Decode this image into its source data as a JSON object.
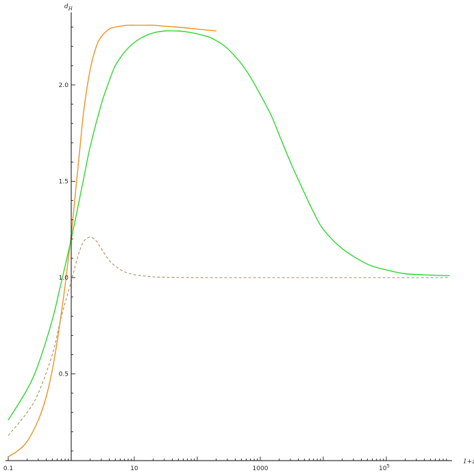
{
  "chart_data": {
    "type": "line",
    "title": "",
    "xlabel": "1+z",
    "ylabel_main": "d",
    "ylabel_sub": "H",
    "x_scale": "log10",
    "xlim": [
      0.1,
      1000000
    ],
    "ylim": [
      0.05,
      2.32
    ],
    "x_axis_crossing_y": 0.05,
    "y_axis_crossing_x": 1,
    "x_ticks": [
      {
        "value": 0.1,
        "label": "0.1"
      },
      {
        "value": 10,
        "label": "10"
      },
      {
        "value": 1000,
        "label": "1000"
      },
      {
        "value": 100000,
        "label": "10",
        "exp": "5"
      }
    ],
    "y_ticks": [
      {
        "value": 0.5,
        "label": "0.5"
      },
      {
        "value": 1.0,
        "label": "1.0"
      },
      {
        "value": 1.5,
        "label": "1.5"
      },
      {
        "value": 2.0,
        "label": "2.0"
      }
    ],
    "grid": false,
    "legend": "none",
    "series": [
      {
        "color": "#f0901e",
        "dashed": false,
        "x": [
          0.1,
          0.14,
          0.2,
          0.3,
          0.4,
          0.5,
          0.6,
          0.7,
          0.8,
          0.9,
          1.0,
          1.2,
          1.4,
          1.6,
          2,
          2.5,
          3,
          4,
          5,
          6,
          8,
          10,
          15,
          20,
          30,
          50,
          100,
          200
        ],
        "y": [
          0.07,
          0.1,
          0.15,
          0.26,
          0.38,
          0.52,
          0.67,
          0.82,
          0.96,
          1.1,
          1.22,
          1.48,
          1.7,
          1.88,
          2.08,
          2.2,
          2.25,
          2.29,
          2.3,
          2.305,
          2.31,
          2.31,
          2.31,
          2.31,
          2.305,
          2.3,
          2.29,
          2.28
        ]
      },
      {
        "color": "#2ed62e",
        "dashed": false,
        "x": [
          0.1,
          0.2,
          0.3,
          0.5,
          0.7,
          1.0,
          1.5,
          2,
          3,
          4,
          5,
          7,
          10,
          15,
          20,
          30,
          50,
          70,
          100,
          150,
          200,
          300,
          500,
          700,
          1000,
          1500,
          2000,
          3000,
          5000,
          7000,
          10000,
          20000,
          50000,
          100000,
          200000,
          500000,
          1000000
        ],
        "y": [
          0.26,
          0.42,
          0.55,
          0.78,
          0.98,
          1.2,
          1.48,
          1.68,
          1.9,
          2.02,
          2.1,
          2.17,
          2.22,
          2.255,
          2.27,
          2.28,
          2.28,
          2.275,
          2.265,
          2.25,
          2.23,
          2.19,
          2.11,
          2.04,
          1.95,
          1.84,
          1.74,
          1.6,
          1.44,
          1.34,
          1.25,
          1.15,
          1.07,
          1.04,
          1.02,
          1.013,
          1.01
        ]
      },
      {
        "color": "#b08a58",
        "dashed": true,
        "x": [
          0.1,
          0.2,
          0.3,
          0.5,
          0.7,
          1.0,
          1.3,
          1.6,
          2.0,
          2.5,
          3,
          4,
          5,
          7,
          10,
          15,
          20,
          30,
          50,
          100,
          200,
          500,
          1000,
          10000,
          100000,
          1000000
        ],
        "y": [
          0.18,
          0.3,
          0.4,
          0.6,
          0.8,
          0.98,
          1.12,
          1.19,
          1.21,
          1.19,
          1.15,
          1.09,
          1.06,
          1.03,
          1.015,
          1.008,
          1.004,
          1.002,
          1.001,
          1.0,
          1.0,
          1.0,
          1.0,
          1.0,
          1.0,
          1.0
        ]
      }
    ]
  }
}
